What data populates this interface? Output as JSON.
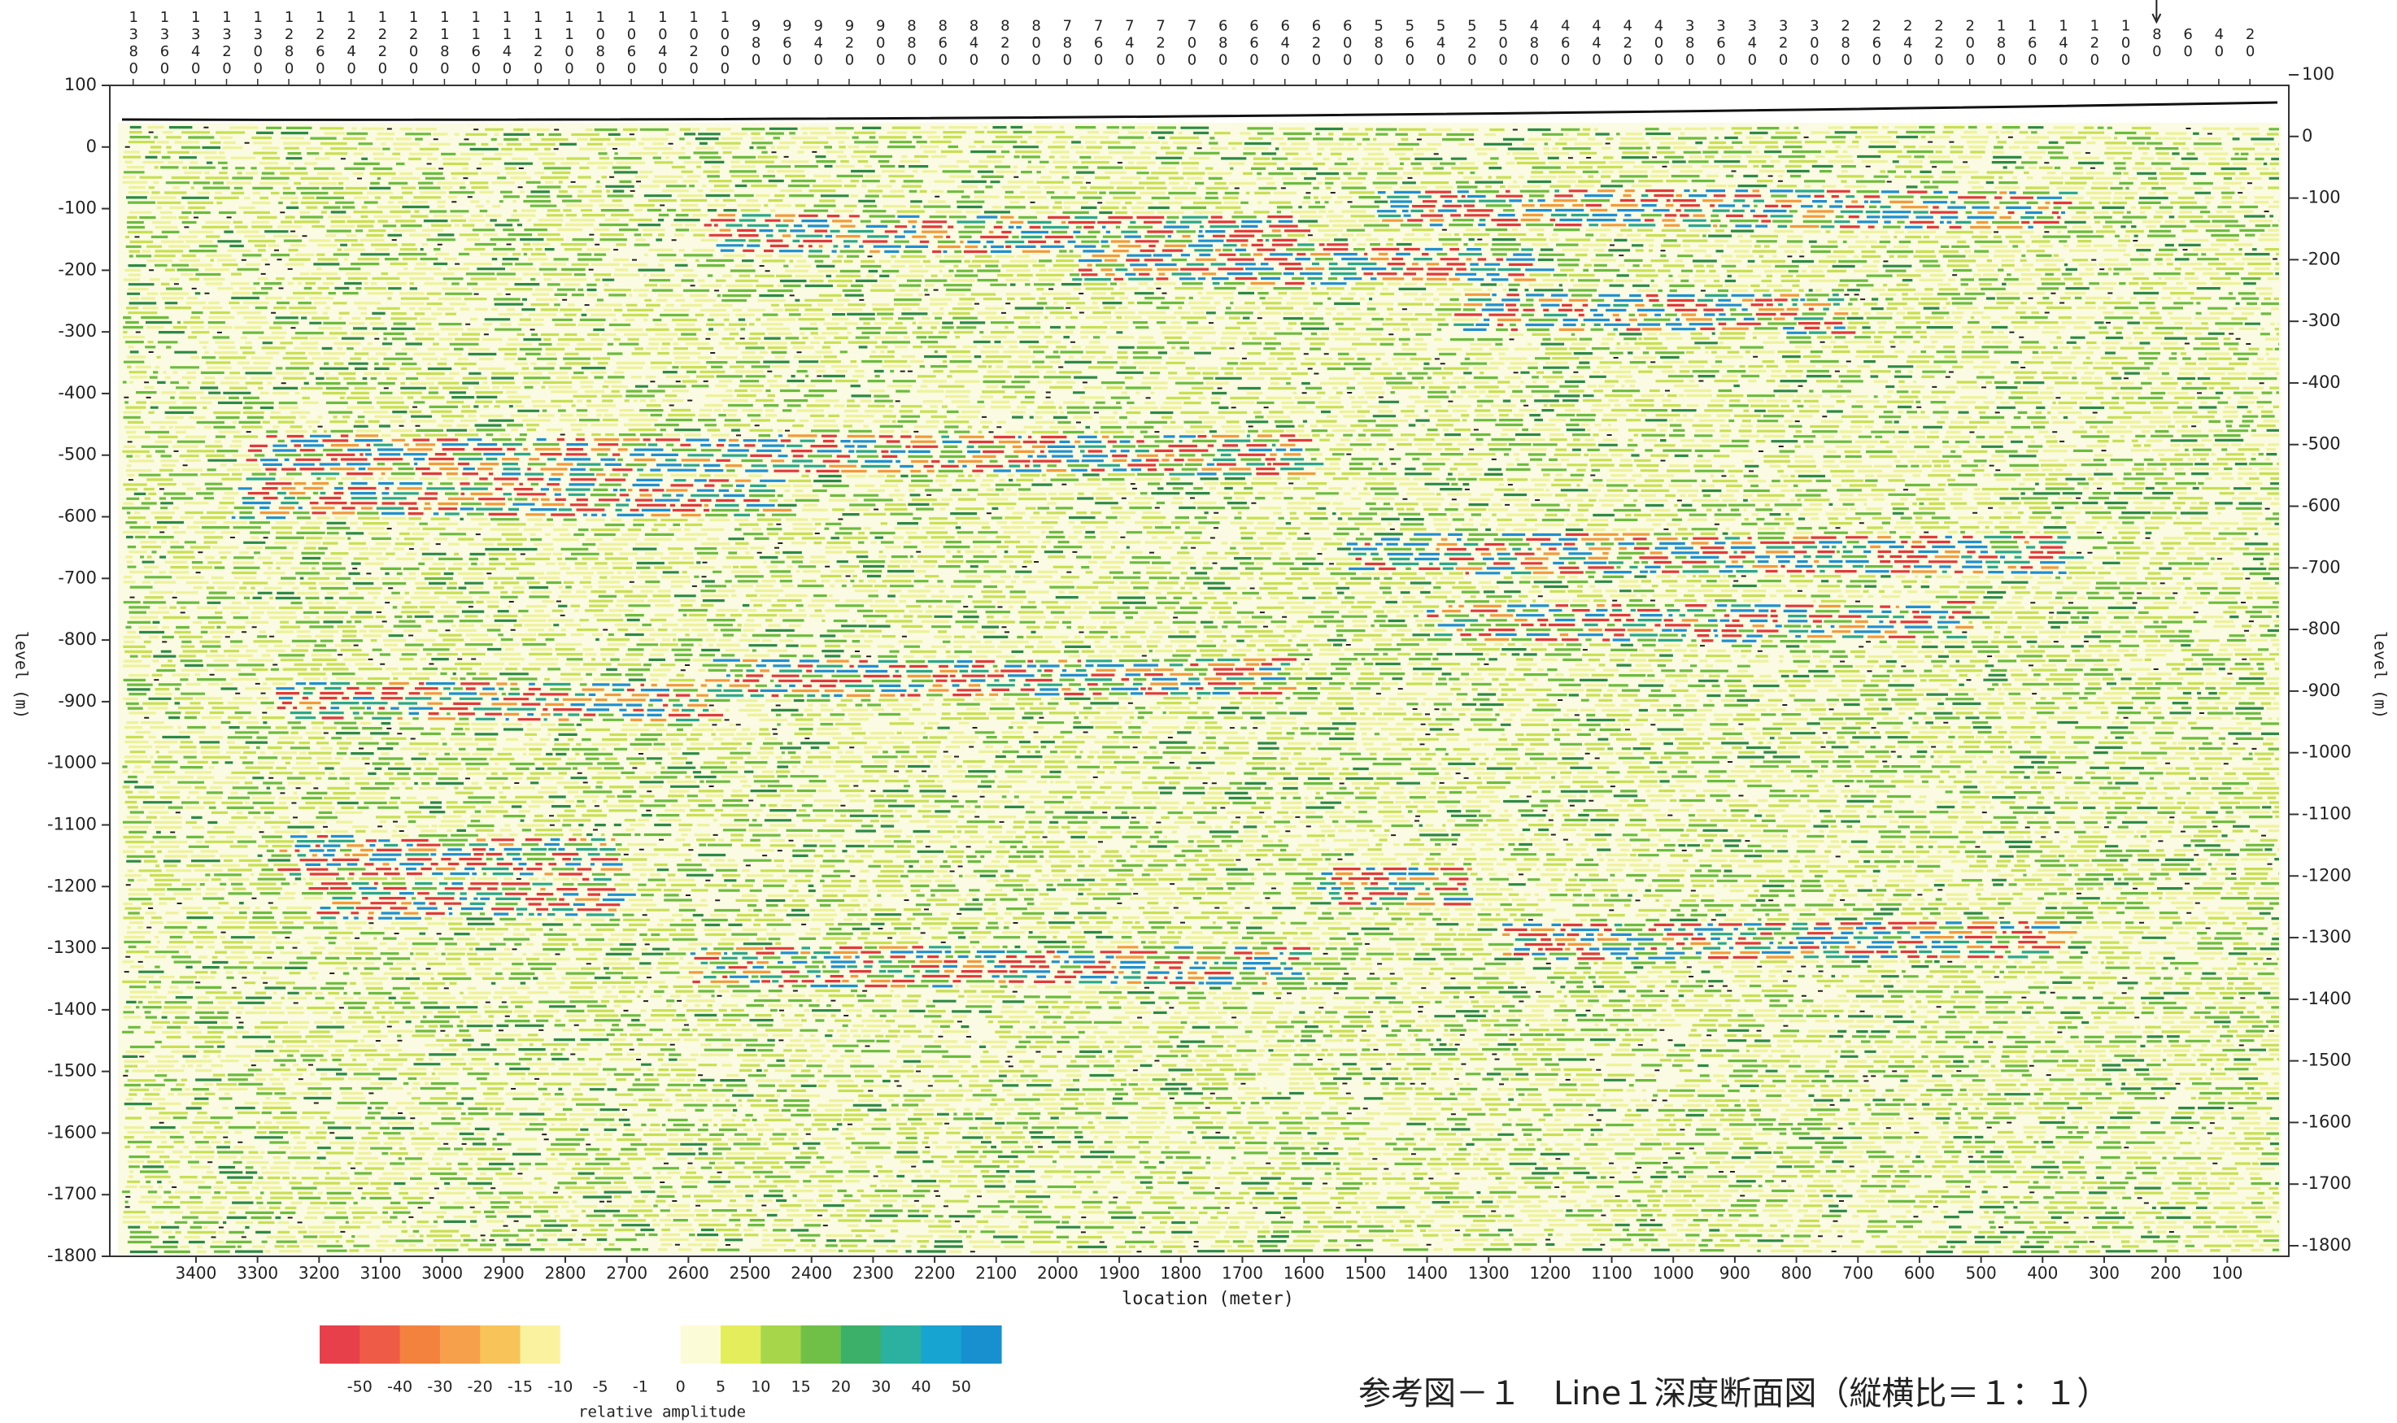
{
  "chart_data": {
    "type": "seismic_section",
    "xlabel": "location (meter)",
    "ylabel": "level (m)",
    "xlim": [
      3540,
      0
    ],
    "xticks": [
      3400,
      3300,
      3200,
      3100,
      3000,
      2900,
      2800,
      2700,
      2600,
      2500,
      2400,
      2300,
      2200,
      2100,
      2000,
      1900,
      1800,
      1700,
      1600,
      1500,
      1400,
      1300,
      1200,
      1100,
      1000,
      900,
      800,
      700,
      600,
      500,
      400,
      300,
      200,
      100
    ],
    "ylim": [
      -1800,
      100
    ],
    "yticks": [
      100,
      0,
      -100,
      -200,
      -300,
      -400,
      -500,
      -600,
      -700,
      -800,
      -900,
      -1000,
      -1100,
      -1200,
      -1300,
      -1400,
      -1500,
      -1600,
      -1700,
      -1800
    ],
    "x2lim": [
      1395,
      -5
    ],
    "x2ticks": [
      1380,
      1360,
      1340,
      1320,
      1300,
      1280,
      1260,
      1240,
      1220,
      1200,
      1180,
      1160,
      1140,
      1120,
      1100,
      1080,
      1060,
      1040,
      1020,
      1000,
      980,
      960,
      940,
      920,
      900,
      880,
      860,
      840,
      820,
      800,
      780,
      760,
      740,
      720,
      700,
      680,
      660,
      640,
      620,
      600,
      580,
      560,
      540,
      520,
      500,
      480,
      460,
      440,
      420,
      400,
      380,
      360,
      340,
      320,
      300,
      280,
      260,
      240,
      220,
      200,
      180,
      160,
      140,
      120,
      100,
      80,
      60,
      40,
      20
    ],
    "x2_marker": 80,
    "colorbar": {
      "label": "relative amplitude",
      "ticks": [
        -50,
        -40,
        -30,
        -20,
        -15,
        -10,
        -5,
        -1,
        0,
        5,
        10,
        15,
        20,
        30,
        40,
        50
      ],
      "colors": [
        "#e8404a",
        "#ee5c48",
        "#f3823f",
        "#f6a04c",
        "#f8c45a",
        "#fbf2a0",
        "#ffffff",
        "#ffffff",
        "#ffffff",
        "#fbfbd8",
        "#e4ee5c",
        "#a8d64a",
        "#70c048",
        "#3cb068",
        "#2cb0a0",
        "#18a4d0",
        "#1890d0"
      ]
    },
    "caption": "参考図－１　Line１深度断面図（縦横比＝１：１）"
  }
}
